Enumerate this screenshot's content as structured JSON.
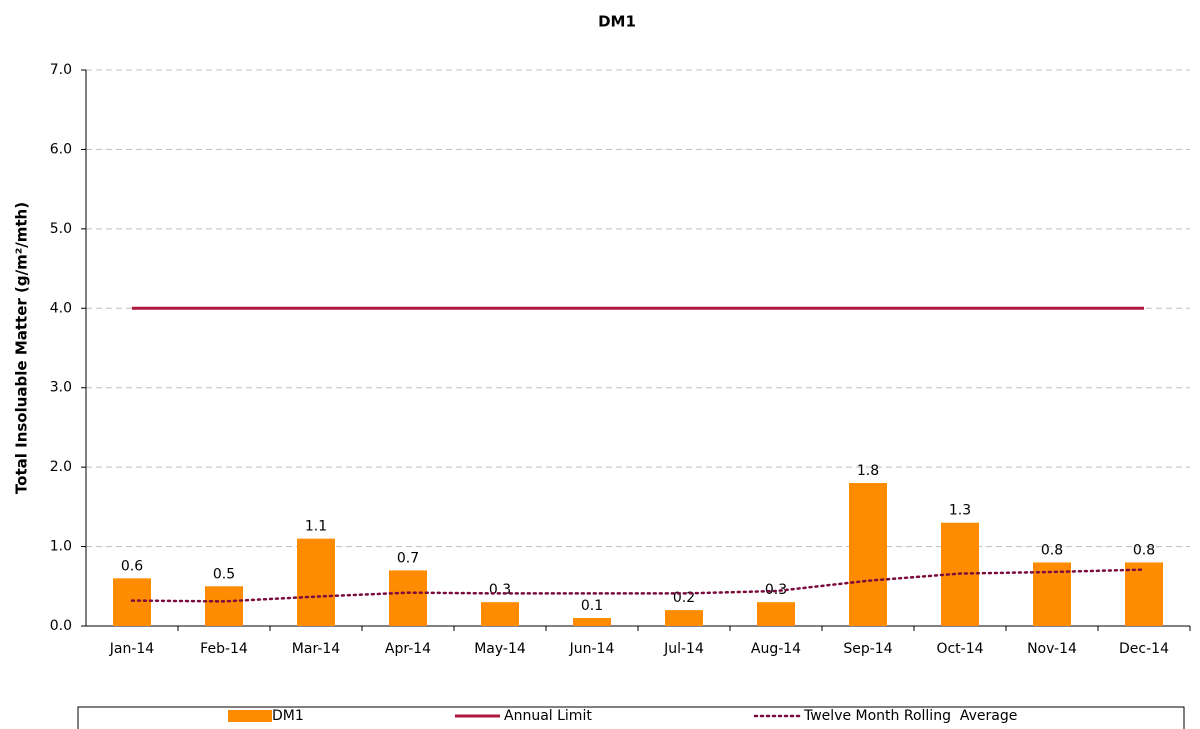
{
  "chart_data": {
    "type": "bar",
    "title": "DM1",
    "y_label": "Total Insoluable Matter (g/m²/mth)",
    "categories": [
      "Jan-14",
      "Feb-14",
      "Mar-14",
      "Apr-14",
      "May-14",
      "Jun-14",
      "Jul-14",
      "Aug-14",
      "Sep-14",
      "Oct-14",
      "Nov-14",
      "Dec-14"
    ],
    "series": [
      {
        "name": "DM1",
        "type": "bar",
        "color": "#ff8c00",
        "values": [
          0.6,
          0.5,
          1.1,
          0.7,
          0.3,
          0.1,
          0.2,
          0.3,
          1.8,
          1.3,
          0.8,
          0.8
        ]
      },
      {
        "name": "Annual Limit",
        "type": "line",
        "color": "#b0173f",
        "values": [
          4,
          4,
          4,
          4,
          4,
          4,
          4,
          4,
          4,
          4,
          4,
          4
        ]
      },
      {
        "name": "Twelve Month Rolling  Average",
        "type": "line",
        "style": "dotted",
        "color": "#7a0b3c",
        "values": [
          0.32,
          0.31,
          0.37,
          0.42,
          0.41,
          0.41,
          0.41,
          0.44,
          0.57,
          0.66,
          0.68,
          0.71
        ]
      }
    ],
    "ylim": [
      0,
      7
    ],
    "yticks": [
      {
        "value": 0,
        "label": "0.0"
      },
      {
        "value": 1,
        "label": "1.0"
      },
      {
        "value": 2,
        "label": "2.0"
      },
      {
        "value": 3,
        "label": "3.0"
      },
      {
        "value": 4,
        "label": "4.0"
      },
      {
        "value": 5,
        "label": "5.0"
      },
      {
        "value": 6,
        "label": "6.0"
      },
      {
        "value": 7,
        "label": "7.0"
      }
    ],
    "grid": true
  }
}
